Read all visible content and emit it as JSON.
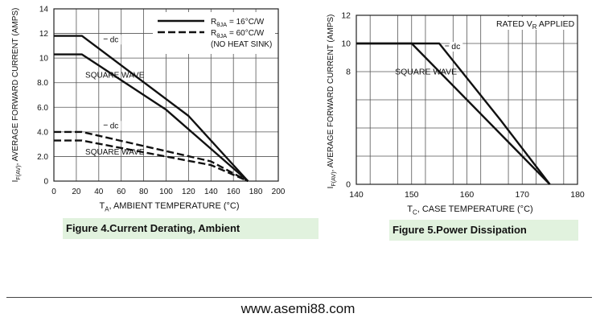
{
  "chart_data": [
    {
      "type": "line",
      "caption": "Figure 4.Current  Derating, Ambient",
      "ylabel": "IF(AV), AVERAGE FORWARD CURRENT (AMPS)",
      "xlabel": "TA, AMBIENT TEMPERATURE (°C)",
      "xlim": [
        0,
        200
      ],
      "ylim": [
        0,
        14
      ],
      "xticks": [
        "0",
        "20",
        "40",
        "60",
        "80",
        "100",
        "120",
        "140",
        "160",
        "180",
        "200"
      ],
      "yticks": [
        "0",
        "2.0",
        "4.0",
        "6.0",
        "8.0",
        "10",
        "12",
        "14"
      ],
      "grid": true,
      "legend_position": "top-right",
      "legend": [
        {
          "label": "RθJA = 16°C/W",
          "style": "solid"
        },
        {
          "label": "RθJA = 60°C/W",
          "style": "dashed"
        },
        {
          "label": "(NO HEAT SINK)",
          "style": "none"
        }
      ],
      "series": [
        {
          "style": "solid",
          "x": [
            0,
            25,
            120,
            173
          ],
          "y": [
            11.8,
            11.8,
            5.3,
            0
          ]
        },
        {
          "style": "solid",
          "x": [
            0,
            25,
            100,
            173
          ],
          "y": [
            10.3,
            10.3,
            5.8,
            0
          ]
        },
        {
          "style": "dashed",
          "x": [
            0,
            25,
            140,
            173
          ],
          "y": [
            4.0,
            4.0,
            1.6,
            0
          ]
        },
        {
          "style": "dashed",
          "x": [
            0,
            25,
            140,
            173
          ],
          "y": [
            3.3,
            3.3,
            1.3,
            0
          ]
        }
      ],
      "annotations": [
        {
          "text": "dc",
          "x": 50,
          "y": 11.3
        },
        {
          "text": "SQUARE WAVE",
          "x": 28,
          "y": 8.4
        },
        {
          "text": "dc",
          "x": 50,
          "y": 4.3
        },
        {
          "text": "SQUARE WAVE",
          "x": 28,
          "y": 2.15
        }
      ]
    },
    {
      "type": "line",
      "caption": "Figure 5.Power  Dissipation",
      "ylabel": "IF(AV), AVERAGE FORWARD CURRENT (AMPS)",
      "xlabel": "TC, CASE TEMPERATURE (°C)",
      "xlim": [
        140,
        180
      ],
      "ylim": [
        0,
        12
      ],
      "xticks": [
        "140",
        "150",
        "160",
        "170",
        "180"
      ],
      "yticks": [
        {
          "label": "0",
          "value": 0
        },
        {
          "label": "8",
          "value": 8
        },
        {
          "label": "10",
          "value": 10
        },
        {
          "label": "12",
          "value": 12
        }
      ],
      "grid": true,
      "annotation_box": "RATED VR APPLIED",
      "series": [
        {
          "style": "solid",
          "x": [
            140,
            155,
            166,
            175
          ],
          "y": [
            10,
            10,
            4.6,
            0
          ]
        },
        {
          "style": "solid",
          "x": [
            140,
            150,
            175
          ],
          "y": [
            10,
            10,
            0
          ]
        }
      ],
      "annotations": [
        {
          "text": "dc",
          "x": 157.2,
          "y": 9.6
        },
        {
          "text": "SQUARE WAVE",
          "x": 147,
          "y": 7.8
        }
      ]
    }
  ],
  "footer": "www.asemi88.com"
}
